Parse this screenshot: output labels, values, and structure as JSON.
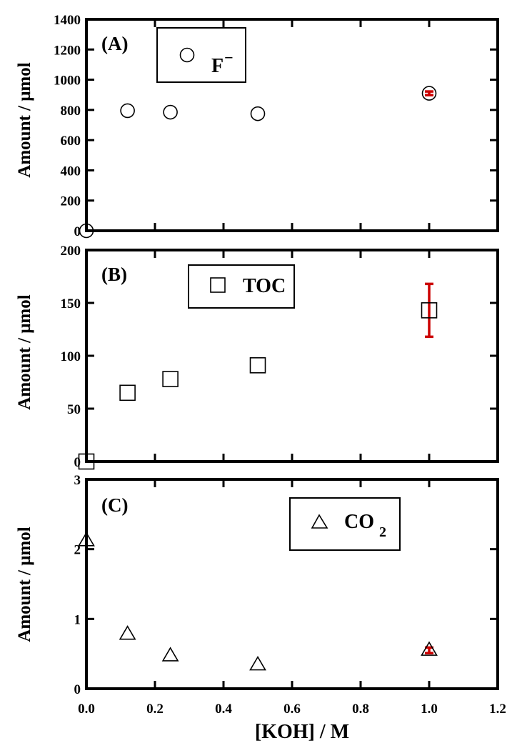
{
  "chart_data": [
    {
      "type": "scatter",
      "panel_label": "(A)",
      "ylabel": "Amount /  μmol",
      "xlim": [
        0,
        1.2
      ],
      "ylim": [
        0,
        1400
      ],
      "yticks": [
        "0",
        "200",
        "400",
        "600",
        "800",
        "1000",
        "1200",
        "1400"
      ],
      "yticks_values": [
        0,
        200,
        400,
        600,
        800,
        1000,
        1200,
        1400
      ],
      "marker": "circle",
      "legend": {
        "label": "F",
        "superscript": "−"
      },
      "series": [
        {
          "x": [
            0,
            0.12,
            0.245,
            0.5,
            1.0
          ],
          "y": [
            0,
            795,
            785,
            775,
            910
          ],
          "yerr": [
            0,
            0,
            0,
            0,
            12
          ]
        }
      ]
    },
    {
      "type": "scatter",
      "panel_label": "(B)",
      "ylabel": "Amount /  μmol",
      "xlim": [
        0,
        1.2
      ],
      "ylim": [
        0,
        200
      ],
      "yticks": [
        "0",
        "50",
        "100",
        "150",
        "200"
      ],
      "yticks_values": [
        0,
        50,
        100,
        150,
        200
      ],
      "marker": "square",
      "legend": {
        "label": "TOC"
      },
      "series": [
        {
          "x": [
            0,
            0.12,
            0.245,
            0.5,
            1.0
          ],
          "y": [
            0,
            65,
            78,
            91,
            143
          ],
          "yerr": [
            0,
            0,
            0,
            0,
            25
          ]
        }
      ]
    },
    {
      "type": "scatter",
      "panel_label": "(C)",
      "ylabel": "Amount /  μmol",
      "xlabel": "[KOH] / M",
      "xlim": [
        0,
        1.2
      ],
      "ylim": [
        0,
        3
      ],
      "yticks": [
        "0",
        "1",
        "2",
        "3"
      ],
      "yticks_values": [
        0,
        1,
        2,
        3
      ],
      "xticks": [
        "0.0",
        "0.2",
        "0.4",
        "0.6",
        "0.8",
        "1.0",
        "1.2"
      ],
      "xticks_values": [
        0,
        0.2,
        0.4,
        0.6,
        0.8,
        1.0,
        1.2
      ],
      "marker": "triangle",
      "legend": {
        "label": "CO",
        "subscript": "2"
      },
      "series": [
        {
          "x": [
            0,
            0.12,
            0.245,
            0.5,
            1.0
          ],
          "y": [
            2.12,
            0.78,
            0.47,
            0.34,
            0.55
          ],
          "yerr": [
            0,
            0,
            0,
            0,
            0.04
          ]
        }
      ]
    }
  ]
}
